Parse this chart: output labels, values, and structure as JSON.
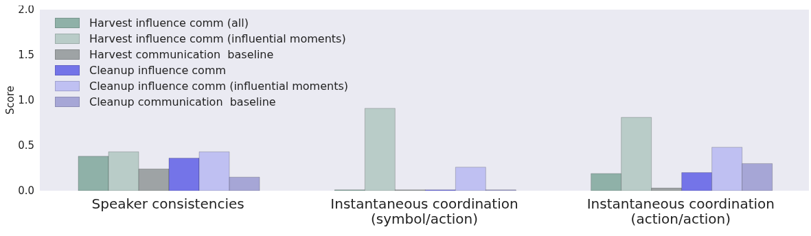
{
  "chart_data": {
    "type": "bar",
    "ylabel": "Score",
    "categories": [
      "Speaker consistencies",
      "Instantaneous coordination\n(symbol/action)",
      "Instantaneous coordination\n(action/action)"
    ],
    "series": [
      {
        "name": "Harvest influence comm (all)",
        "color": "#8fb1a8",
        "values": [
          0.38,
          0.01,
          0.19
        ]
      },
      {
        "name": "Harvest influence comm (influential moments)",
        "color": "#b9ccc8",
        "values": [
          0.43,
          0.91,
          0.81
        ]
      },
      {
        "name": "Harvest communication  baseline",
        "color": "#9ea3a5",
        "values": [
          0.24,
          0.01,
          0.03
        ]
      },
      {
        "name": "Cleanup influence comm",
        "color": "#7474e8",
        "values": [
          0.36,
          0.01,
          0.2
        ]
      },
      {
        "name": "Cleanup influence comm (influential moments)",
        "color": "#bfc0f2",
        "values": [
          0.43,
          0.26,
          0.48
        ]
      },
      {
        "name": "Cleanup communication  baseline",
        "color": "#a6a6d6",
        "values": [
          0.15,
          0.01,
          0.3
        ]
      }
    ],
    "ylim": [
      0,
      2
    ],
    "yticks": [
      {
        "value": 0,
        "label": "0.0"
      },
      0.5,
      {
        "value": 1,
        "label": "1.0"
      },
      1.5,
      {
        "value": 2,
        "label": "2.0"
      }
    ],
    "legend": "top left"
  }
}
